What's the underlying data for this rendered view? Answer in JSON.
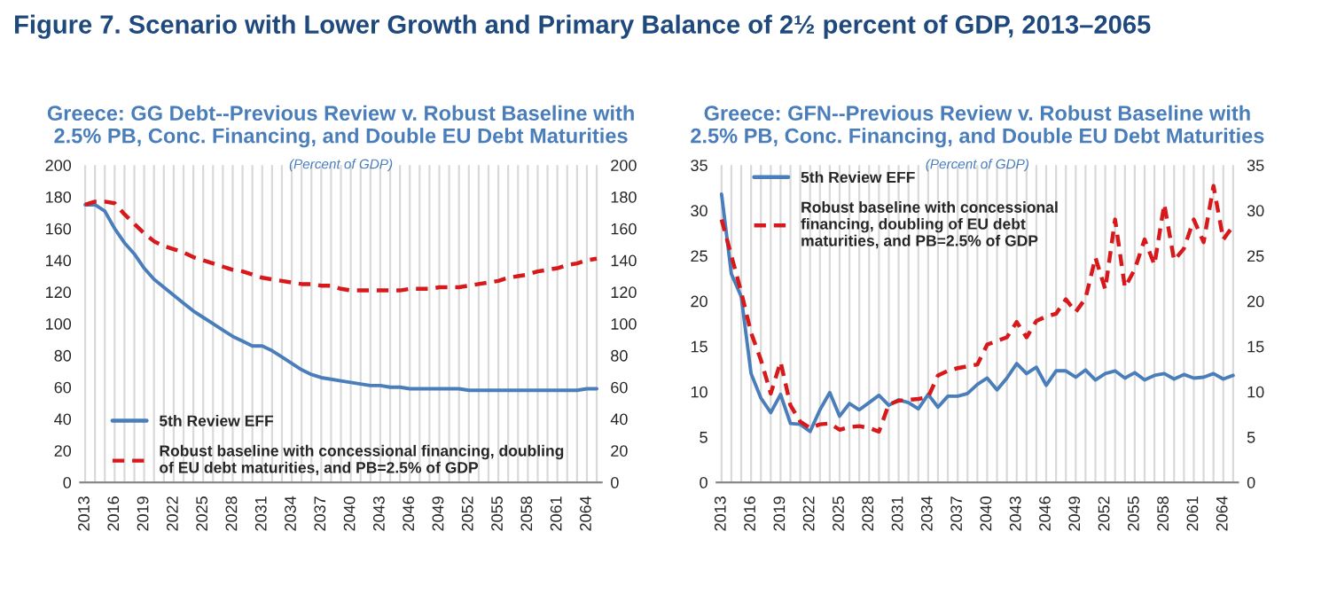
{
  "chart_data": [
    {
      "type": "line",
      "title": "Greece: GG Debt--Previous Review v. Robust Baseline with\n2.5% PB, Conc. Financing, and Double EU Debt Maturities",
      "subtitle": "(Percent of GDP)",
      "annotations": [
        "Figure 7. Scenario with Lower Growth and Primary Balance of 2½ percent of GDP, 2013–2065"
      ],
      "categories": [
        "2013",
        null,
        null,
        "2016",
        null,
        null,
        "2019",
        null,
        null,
        "2022",
        null,
        null,
        "2025",
        null,
        null,
        "2028",
        null,
        null,
        "2031",
        null,
        null,
        "2034",
        null,
        null,
        "2037",
        null,
        null,
        "2040",
        null,
        null,
        "2043",
        null,
        null,
        "2046",
        null,
        null,
        "2049",
        null,
        null,
        "2052",
        null,
        null,
        "2055",
        null,
        null,
        "2058",
        null,
        null,
        "2061",
        null,
        null,
        "2064",
        null
      ],
      "series": [
        {
          "name": "5th Review EFF",
          "color": "#4a7ebb",
          "line_style": "solid",
          "values": [
            175,
            175,
            171,
            160,
            151,
            144,
            135,
            128,
            123,
            118,
            113,
            108,
            104,
            100,
            96,
            92,
            89,
            86,
            86,
            83,
            79,
            75,
            71,
            68,
            66,
            65,
            64,
            63,
            62,
            61,
            61,
            60,
            60,
            59,
            59,
            59,
            59,
            59,
            59,
            58,
            58,
            58,
            58,
            58,
            58,
            58,
            58,
            58,
            58,
            58,
            58,
            59,
            59
          ]
        },
        {
          "name": "Robust baseline with concessional financing, doubling\nof EU debt maturities, and PB=2.5% of GDP",
          "color": "#d7191c",
          "line_style": "dashed",
          "values": [
            175,
            177,
            177,
            176,
            169,
            163,
            157,
            152,
            149,
            147,
            145,
            142,
            140,
            138,
            136,
            134,
            133,
            131,
            129,
            128,
            127,
            126,
            125,
            125,
            124,
            124,
            122,
            121,
            121,
            121,
            121,
            121,
            121,
            122,
            122,
            122,
            123,
            123,
            123,
            124,
            125,
            126,
            127,
            129,
            130,
            131,
            133,
            134,
            135,
            137,
            138,
            140,
            141
          ]
        }
      ],
      "ylim": [
        0,
        200
      ],
      "yticks": [
        0,
        20,
        40,
        60,
        80,
        100,
        120,
        140,
        160,
        180,
        200
      ],
      "y2lim": [
        0,
        200
      ],
      "y2ticks": [
        0,
        20,
        40,
        60,
        80,
        100,
        120,
        140,
        160,
        180,
        200
      ],
      "grid": "x",
      "legend": "bottom left"
    },
    {
      "type": "line",
      "title": "Greece: GFN--Previous Review v. Robust Baseline with\n2.5% PB, Conc. Financing, and Double EU Debt Maturities",
      "subtitle": "(Percent of GDP)",
      "categories": [
        "2013",
        null,
        null,
        "2016",
        null,
        null,
        "2019",
        null,
        null,
        "2022",
        null,
        null,
        "2025",
        null,
        null,
        "2028",
        null,
        null,
        "2031",
        null,
        null,
        "2034",
        null,
        null,
        "2037",
        null,
        null,
        "2040",
        null,
        null,
        "2043",
        null,
        null,
        "2046",
        null,
        null,
        "2049",
        null,
        null,
        "2052",
        null,
        null,
        "2055",
        null,
        null,
        "2058",
        null,
        null,
        "2061",
        null,
        null,
        "2064",
        null
      ],
      "series": [
        {
          "name": "5th Review EFF",
          "color": "#4a7ebb",
          "line_style": "solid",
          "values": [
            31.8,
            23,
            20.5,
            12,
            9.3,
            7.7,
            9.7,
            6.5,
            6.4,
            5.6,
            8,
            9.9,
            7.3,
            8.7,
            8,
            8.8,
            9.6,
            8.5,
            9.1,
            8.8,
            8.1,
            9.7,
            8.3,
            9.5,
            9.5,
            9.8,
            10.8,
            11.5,
            10.2,
            11.5,
            13.1,
            12,
            12.7,
            10.7,
            12.3,
            12.3,
            11.6,
            12.4,
            11.3,
            12,
            12.3,
            11.5,
            12.1,
            11.3,
            11.8,
            12,
            11.4,
            11.9,
            11.5,
            11.6,
            12,
            11.4,
            11.8
          ]
        },
        {
          "name": "Robust baseline with concessional\nfinancing, doubling of EU debt\nmaturities, and PB=2.5% of GDP",
          "color": "#d7191c",
          "line_style": "dashed",
          "values": [
            29,
            25,
            21,
            16.5,
            13.5,
            9.8,
            13.3,
            8.5,
            6.7,
            6,
            6.4,
            6.5,
            5.8,
            6.1,
            6.2,
            6,
            5.6,
            8.6,
            9,
            9.1,
            9.2,
            9.4,
            11.8,
            12.3,
            12.6,
            12.8,
            13,
            15.2,
            15.6,
            16,
            17.7,
            16,
            17.8,
            18.3,
            18.6,
            20.2,
            18.8,
            20.3,
            24.8,
            21.3,
            29,
            21.5,
            23.5,
            26.8,
            24,
            30.7,
            24.5,
            25.8,
            29,
            26.5,
            32.7,
            26.8,
            28.3
          ]
        }
      ],
      "ylim": [
        0,
        35
      ],
      "yticks": [
        0,
        5,
        10,
        15,
        20,
        25,
        30,
        35
      ],
      "y2lim": [
        0,
        35
      ],
      "y2ticks": [
        0,
        5,
        10,
        15,
        20,
        25,
        30,
        35
      ],
      "grid": "x",
      "legend": "top left"
    }
  ]
}
